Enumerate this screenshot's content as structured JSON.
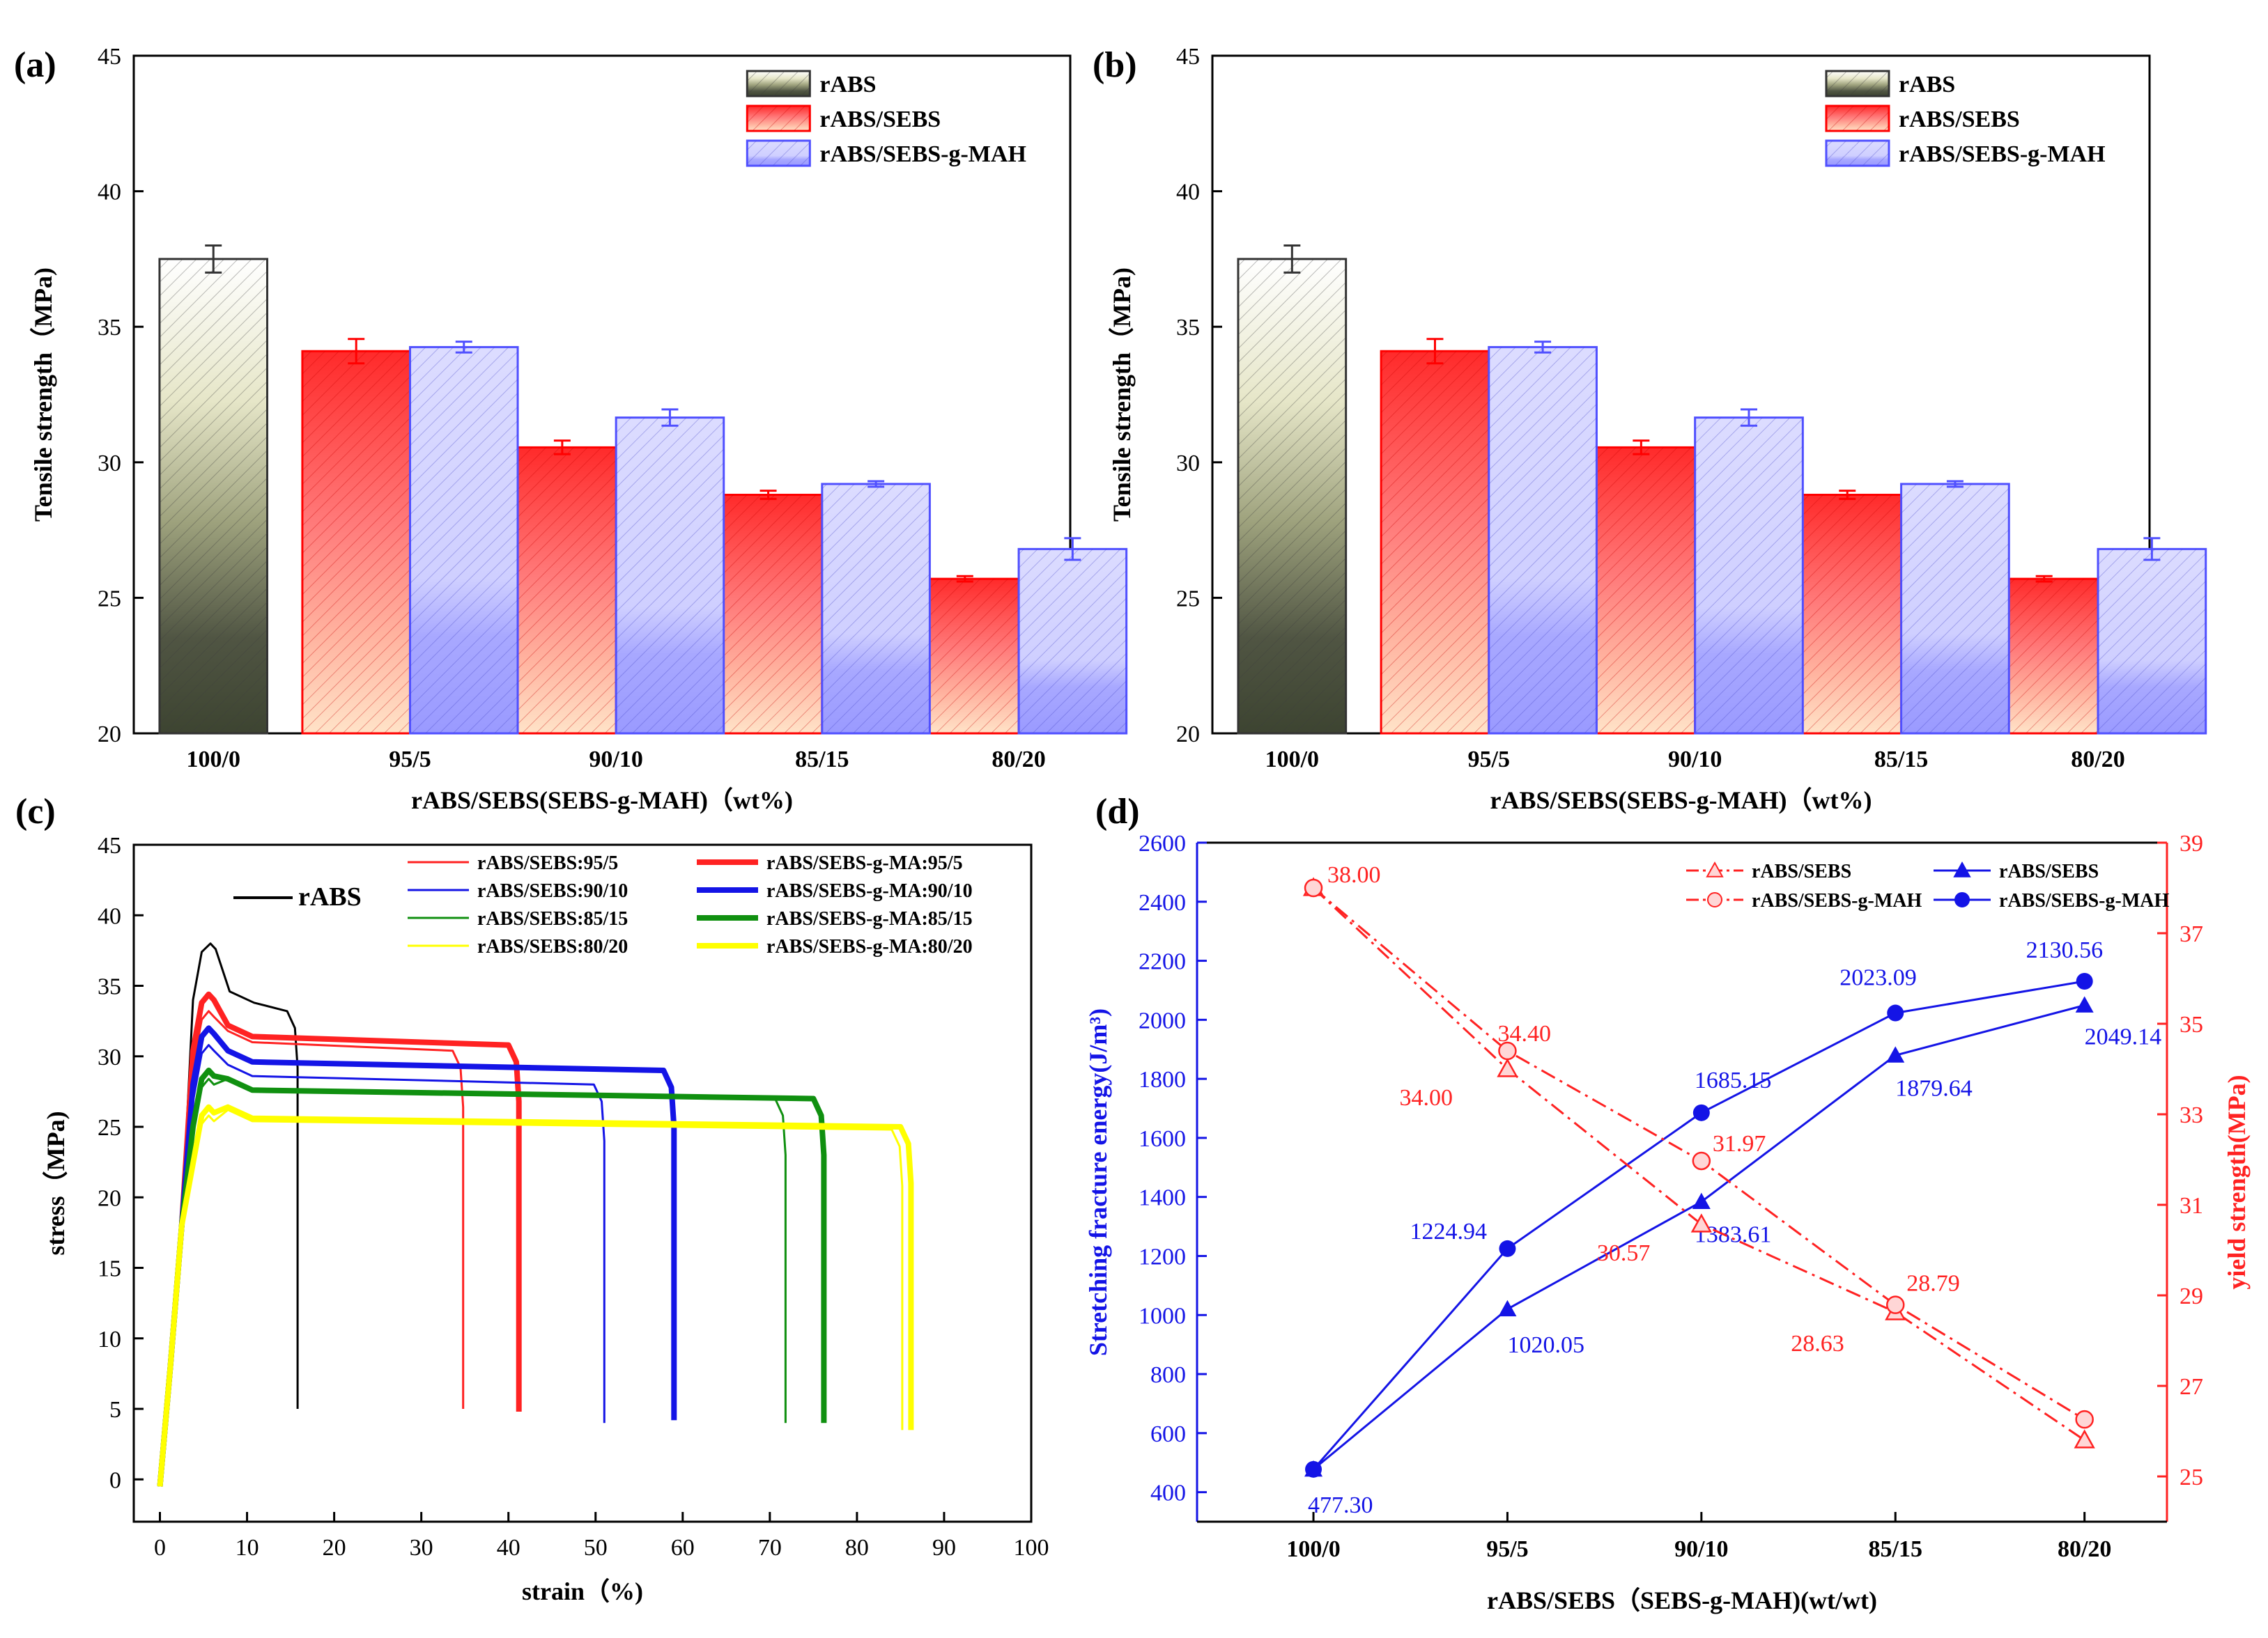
{
  "colors": {
    "rabs": "#5a5f46",
    "sebs": "#ff3b3b",
    "mah": "#9f9fff",
    "sebs_dark": "#ff0000",
    "mah_dark": "#5050ff",
    "rabs_dark": "#333333",
    "blue": "#1414e6",
    "red": "#ff2222",
    "yellow": "#ffff00",
    "green": "#109010"
  },
  "chart_data": [
    {
      "id": "a",
      "panel_label": "(a)",
      "type": "bar",
      "xlabel": "rABS/SEBS(SEBS-g-MAH)（wt%)",
      "ylabel": "Tensile strength（MPa)",
      "ylim": [
        20,
        45
      ],
      "yticks": [
        "20",
        "25",
        "30",
        "35",
        "40",
        "45"
      ],
      "categories": [
        "100/0",
        "95/5",
        "90/10",
        "85/15",
        "80/20"
      ],
      "legend": [
        "rABS",
        "rABS/SEBS",
        "rABS/SEBS-g-MAH"
      ],
      "series": [
        {
          "name": "rABS",
          "values": [
            37.5,
            null,
            null,
            null,
            null
          ],
          "errors": [
            0.5,
            null,
            null,
            null,
            null
          ]
        },
        {
          "name": "rABS/SEBS",
          "values": [
            null,
            34.1,
            30.55,
            28.8,
            25.7
          ],
          "errors": [
            null,
            0.45,
            0.25,
            0.15,
            0.1
          ]
        },
        {
          "name": "rABS/SEBS-g-MAH",
          "values": [
            null,
            34.25,
            31.65,
            29.2,
            26.8
          ],
          "errors": [
            null,
            0.2,
            0.3,
            0.1,
            0.4
          ]
        }
      ]
    },
    {
      "id": "b",
      "panel_label": "(b)",
      "type": "bar",
      "xlabel": "rABS/SEBS(SEBS-g-MAH)（wt%)",
      "ylabel": "Tensile strength（MPa)",
      "ylim": [
        20,
        45
      ],
      "yticks": [
        "20",
        "25",
        "30",
        "35",
        "40",
        "45"
      ],
      "categories": [
        "100/0",
        "95/5",
        "90/10",
        "85/15",
        "80/20"
      ],
      "legend": [
        "rABS",
        "rABS/SEBS",
        "rABS/SEBS-g-MAH"
      ],
      "series": [
        {
          "name": "rABS",
          "values": [
            37.5,
            null,
            null,
            null,
            null
          ],
          "errors": [
            0.5,
            null,
            null,
            null,
            null
          ]
        },
        {
          "name": "rABS/SEBS",
          "values": [
            null,
            34.1,
            30.55,
            28.8,
            25.7
          ],
          "errors": [
            null,
            0.45,
            0.25,
            0.15,
            0.1
          ]
        },
        {
          "name": "rABS/SEBS-g-MAH",
          "values": [
            null,
            34.25,
            31.65,
            29.2,
            26.8
          ],
          "errors": [
            null,
            0.2,
            0.3,
            0.1,
            0.4
          ]
        }
      ]
    },
    {
      "id": "c",
      "panel_label": "(c)",
      "type": "line",
      "xlabel": "strain（%)",
      "ylabel": "stress（MPa)",
      "xlim": [
        -3,
        100
      ],
      "ylim": [
        -3,
        45
      ],
      "xticks": [
        "0",
        "10",
        "20",
        "30",
        "40",
        "50",
        "60",
        "70",
        "80",
        "90",
        "100"
      ],
      "yticks": [
        "0",
        "5",
        "10",
        "15",
        "20",
        "25",
        "30",
        "35",
        "40",
        "45"
      ],
      "rabs_label": "rABS",
      "series": [
        {
          "name": "rABS",
          "color": "black",
          "bold": false,
          "peak": 38.0,
          "plateau": 33.2,
          "break": 15.8,
          "end": 5.0
        },
        {
          "name": "rABS/SEBS:95/5",
          "color": "red",
          "bold": false,
          "peak": 33.2,
          "plateau": 30.4,
          "break": 34.8,
          "end": 5.0
        },
        {
          "name": "rABS/SEBS-g-MA:95/5",
          "color": "red",
          "bold": true,
          "peak": 34.4,
          "plateau": 30.8,
          "break": 41.2,
          "end": 4.8
        },
        {
          "name": "rABS/SEBS:90/10",
          "color": "blue",
          "bold": false,
          "peak": 30.8,
          "plateau": 28.0,
          "break": 51.0,
          "end": 4.0
        },
        {
          "name": "rABS/SEBS-g-MA:90/10",
          "color": "blue",
          "bold": true,
          "peak": 32.0,
          "plateau": 29.0,
          "break": 59.0,
          "end": 4.2
        },
        {
          "name": "rABS/SEBS:85/15",
          "color": "green",
          "bold": false,
          "peak": 28.4,
          "plateau": 27.0,
          "break": 71.8,
          "end": 4.0
        },
        {
          "name": "rABS/SEBS-g-MA:85/15",
          "color": "green",
          "bold": true,
          "peak": 29.0,
          "plateau": 27.0,
          "break": 76.2,
          "end": 4.0
        },
        {
          "name": "rABS/SEBS:80/20",
          "color": "yellow",
          "bold": false,
          "peak": 25.8,
          "plateau": 24.8,
          "break": 85.2,
          "end": 3.5
        },
        {
          "name": "rABS/SEBS-g-MA:80/20",
          "color": "yellow",
          "bold": true,
          "peak": 26.4,
          "plateau": 25.0,
          "break": 86.2,
          "end": 3.5
        }
      ]
    },
    {
      "id": "d",
      "panel_label": "(d)",
      "type": "line",
      "xlabel": "rABS/SEBS（SEBS-g-MAH)(wt/wt)",
      "ylabel_left": "Stretching fracture energy(J/m³)",
      "ylabel_right": "yield strength(MPa)",
      "categories": [
        "100/0",
        "95/5",
        "90/10",
        "85/15",
        "80/20"
      ],
      "ylim_left": [
        300,
        2600
      ],
      "ylim_right": [
        24,
        39
      ],
      "yticks_left": [
        "400",
        "600",
        "800",
        "1000",
        "1200",
        "1400",
        "1600",
        "1800",
        "2000",
        "2200",
        "2400",
        "2600"
      ],
      "yticks_right": [
        "25",
        "27",
        "29",
        "31",
        "33",
        "35",
        "37",
        "39"
      ],
      "legend": [
        "rABS/SEBS",
        "rABS/SEBS-g-MAH",
        "rABS/SEBS",
        "rABS/SEBS-g-MAH"
      ],
      "series": [
        {
          "name": "rABS/SEBS",
          "axis": "left",
          "values": [
            477.3,
            1020.05,
            1383.61,
            1879.64,
            2049.14
          ],
          "labels": [
            "477.30",
            "1020.05",
            "1383.61",
            "1879.64",
            "2049.14"
          ]
        },
        {
          "name": "rABS/SEBS-g-MAH",
          "axis": "left",
          "values": [
            477.3,
            1224.94,
            1685.15,
            2023.09,
            2130.56
          ],
          "labels": [
            "",
            "1224.94",
            "1685.15",
            "2023.09",
            "2130.56"
          ]
        },
        {
          "name": "rABS/SEBS",
          "axis": "right",
          "values": [
            38.0,
            34.0,
            30.57,
            28.63,
            25.8
          ],
          "labels": [
            "38.00",
            "34.00",
            "30.57",
            "28.63",
            ""
          ]
        },
        {
          "name": "rABS/SEBS-g-MAH",
          "axis": "right",
          "values": [
            38.0,
            34.4,
            31.97,
            28.79,
            26.26
          ],
          "labels": [
            "",
            "34.40",
            "31.97",
            "28.79",
            ""
          ]
        }
      ]
    }
  ]
}
